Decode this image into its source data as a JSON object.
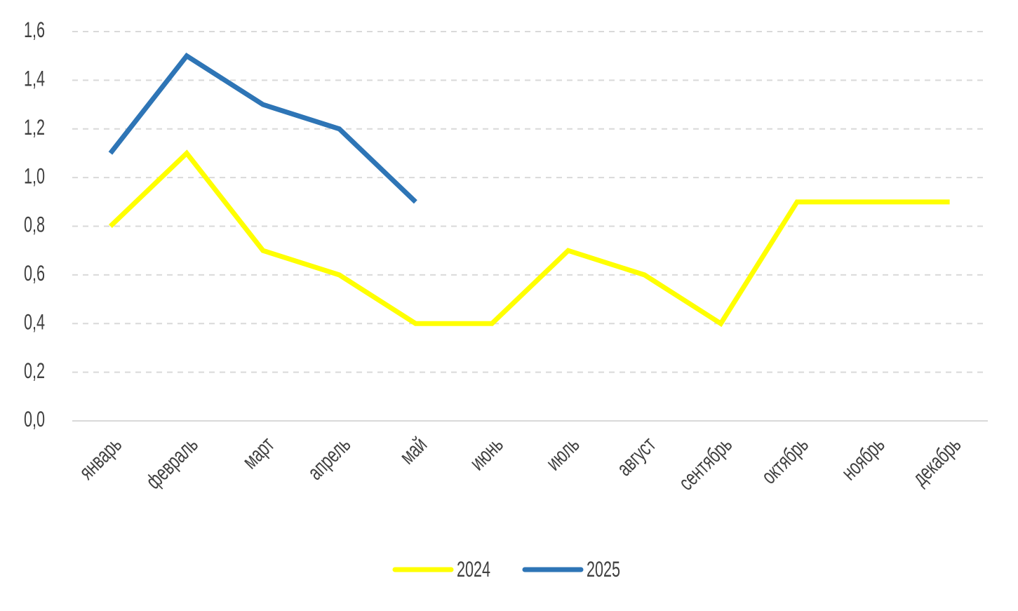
{
  "chart_data": {
    "type": "line",
    "categories": [
      "январь",
      "февраль",
      "март",
      "апрель",
      "май",
      "июнь",
      "июль",
      "август",
      "сентябрь",
      "октябрь",
      "ноябрь",
      "декабрь"
    ],
    "series": [
      {
        "name": "2024",
        "color": "#ffff00",
        "values": [
          0.8,
          1.1,
          0.7,
          0.6,
          0.4,
          0.4,
          0.7,
          0.6,
          0.4,
          0.9,
          0.9,
          0.9
        ]
      },
      {
        "name": "2025",
        "color": "#2e75b6",
        "values": [
          1.1,
          1.5,
          1.3,
          1.2,
          0.9,
          null,
          null,
          null,
          null,
          null,
          null,
          null
        ]
      }
    ],
    "ylim": [
      0,
      1.6
    ],
    "yticks": [
      {
        "value": 0,
        "label": "0,0"
      },
      {
        "value": 0.2,
        "label": "0,2"
      },
      {
        "value": 0.4,
        "label": "0,4"
      },
      {
        "value": 0.6,
        "label": "0,6"
      },
      {
        "value": 0.8,
        "label": "0,8"
      },
      {
        "value": 1.0,
        "label": "1,0"
      },
      {
        "value": 1.2,
        "label": "1,2"
      },
      {
        "value": 1.4,
        "label": "1,4"
      },
      {
        "value": 1.6,
        "label": "1,6"
      }
    ],
    "grid": true,
    "legend": "bottom"
  }
}
